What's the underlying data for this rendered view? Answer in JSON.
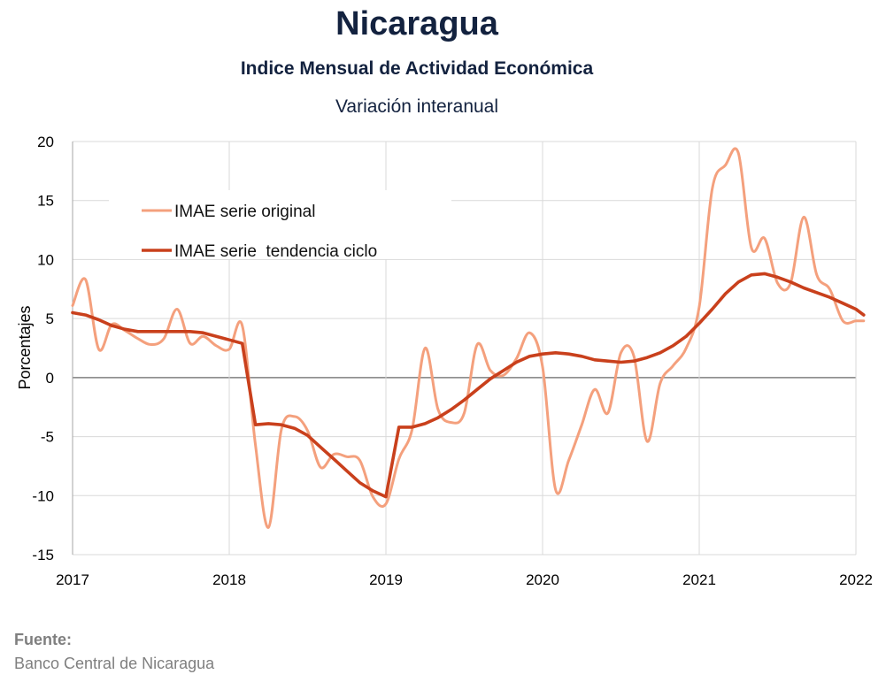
{
  "header": {
    "title": "Nicaragua",
    "subtitle": "Indice Mensual de  Actividad Económica",
    "caption": "Variación interanual"
  },
  "source": {
    "label": "Fuente:",
    "text": "Banco Central de Nicaragua"
  },
  "chart_data": {
    "type": "line",
    "title": "Nicaragua",
    "subtitle": "Indice Mensual de  Actividad Económica",
    "caption": "Variación interanual",
    "ylabel": "Porcentajes",
    "xlabel": "",
    "xlim": [
      2017,
      2022
    ],
    "ylim": [
      -15,
      20
    ],
    "x_ticks": [
      2017,
      2018,
      2019,
      2020,
      2021,
      2022
    ],
    "x_tick_labels": [
      "2017",
      "2018",
      "2019",
      "2020",
      "2021",
      "2022"
    ],
    "y_ticks": [
      20,
      15,
      10,
      5,
      0,
      -5,
      -10,
      -15
    ],
    "y_tick_labels": [
      "20",
      "15",
      "10",
      "5",
      "0",
      "-5",
      "-10",
      "-15"
    ],
    "negative_tick_color": "#c00000",
    "grid": true,
    "legend_position": "top-left",
    "series": [
      {
        "name": "IMAE serie original",
        "color": "#f4a07d",
        "smooth": true,
        "x": [
          2017.0,
          2017.083,
          2017.167,
          2017.25,
          2017.333,
          2017.417,
          2017.5,
          2017.583,
          2017.667,
          2017.75,
          2017.833,
          2017.917,
          2018.0,
          2018.083,
          2018.167,
          2018.25,
          2018.333,
          2018.417,
          2018.5,
          2018.583,
          2018.667,
          2018.75,
          2018.833,
          2018.917,
          2019.0,
          2019.083,
          2019.167,
          2019.25,
          2019.333,
          2019.417,
          2019.5,
          2019.583,
          2019.667,
          2019.75,
          2019.833,
          2019.917,
          2020.0,
          2020.083,
          2020.167,
          2020.25,
          2020.333,
          2020.417,
          2020.5,
          2020.583,
          2020.667,
          2020.75,
          2020.833,
          2020.917,
          2021.0,
          2021.083,
          2021.167,
          2021.25,
          2021.333,
          2021.417,
          2021.5,
          2021.583,
          2021.667,
          2021.75,
          2021.833,
          2021.917,
          2022.0,
          2022.05
        ],
        "values": [
          6.1,
          8.3,
          2.4,
          4.5,
          4.0,
          3.3,
          2.8,
          3.3,
          5.8,
          2.9,
          3.5,
          2.7,
          2.4,
          4.4,
          -5.7,
          -12.7,
          -4.4,
          -3.3,
          -4.5,
          -7.6,
          -6.5,
          -6.7,
          -7.0,
          -10.1,
          -10.7,
          -6.9,
          -4.4,
          2.5,
          -2.7,
          -3.8,
          -3.0,
          2.8,
          0.6,
          0.2,
          1.6,
          3.8,
          0.9,
          -9.5,
          -7.0,
          -4.0,
          -1.0,
          -3.0,
          2.1,
          1.8,
          -5.4,
          -0.5,
          1.0,
          2.5,
          6.0,
          16.0,
          18.0,
          19.0,
          11.0,
          11.8,
          8.0,
          8.0,
          13.6,
          8.7,
          7.5,
          4.8,
          4.8,
          4.8
        ]
      },
      {
        "name": "IMAE serie  tendencia ciclo",
        "color": "#c9401c",
        "smooth": false,
        "x": [
          2017.0,
          2017.083,
          2017.167,
          2017.25,
          2017.333,
          2017.417,
          2017.5,
          2017.583,
          2017.667,
          2017.75,
          2017.833,
          2017.917,
          2018.0,
          2018.083,
          2018.167,
          2018.25,
          2018.333,
          2018.417,
          2018.5,
          2018.583,
          2018.667,
          2018.75,
          2018.833,
          2018.917,
          2019.0,
          2019.083,
          2019.167,
          2019.25,
          2019.333,
          2019.417,
          2019.5,
          2019.583,
          2019.667,
          2019.75,
          2019.833,
          2019.917,
          2020.0,
          2020.083,
          2020.167,
          2020.25,
          2020.333,
          2020.417,
          2020.5,
          2020.583,
          2020.667,
          2020.75,
          2020.833,
          2020.917,
          2021.0,
          2021.083,
          2021.167,
          2021.25,
          2021.333,
          2021.417,
          2021.5,
          2021.583,
          2021.667,
          2021.75,
          2021.833,
          2021.917,
          2022.0,
          2022.05
        ],
        "values": [
          5.5,
          5.3,
          4.9,
          4.4,
          4.1,
          3.9,
          3.9,
          3.9,
          3.9,
          3.9,
          3.8,
          3.5,
          3.2,
          2.9,
          -4.0,
          -3.9,
          -4.0,
          -4.3,
          -4.9,
          -5.9,
          -6.9,
          -7.9,
          -8.9,
          -9.6,
          -10.1,
          -4.2,
          -4.2,
          -3.9,
          -3.4,
          -2.7,
          -1.9,
          -1.0,
          -0.1,
          0.6,
          1.3,
          1.8,
          2.0,
          2.1,
          2.0,
          1.8,
          1.5,
          1.4,
          1.3,
          1.4,
          1.7,
          2.1,
          2.7,
          3.5,
          4.6,
          5.8,
          7.1,
          8.1,
          8.7,
          8.8,
          8.5,
          8.1,
          7.6,
          7.2,
          6.8,
          6.3,
          5.8,
          5.3
        ]
      }
    ]
  }
}
